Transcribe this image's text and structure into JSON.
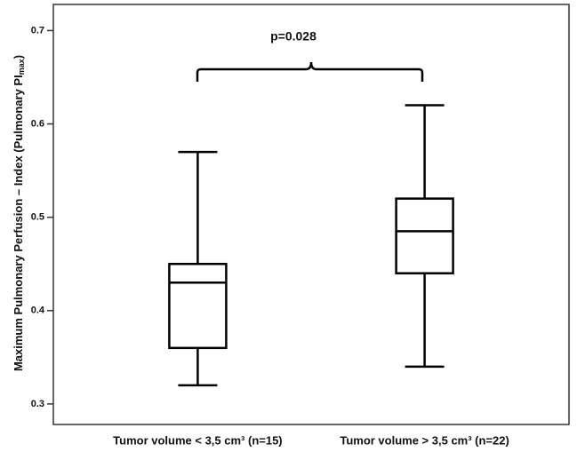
{
  "chart_data": {
    "type": "box",
    "y_label": "Maximum Pulmonary Perfusion – Index (Pulmonary PI",
    "y_label_subscript": "max",
    "y_label_end": ")",
    "annotation": "p=0.028",
    "categories": [
      "Tumor volume < 3,5 cm³ (n=15)",
      "Tumor volume > 3,5 cm³  (n=22)"
    ],
    "boxes": [
      {
        "min": 0.32,
        "q1": 0.36,
        "median": 0.43,
        "q3": 0.45,
        "max": 0.57
      },
      {
        "min": 0.34,
        "q1": 0.44,
        "median": 0.485,
        "q3": 0.52,
        "max": 0.62
      }
    ],
    "color": "#000000",
    "ylim": [
      0.278,
      0.728
    ],
    "yticks": [
      0.3,
      0.4,
      0.5,
      0.6,
      0.7
    ]
  }
}
